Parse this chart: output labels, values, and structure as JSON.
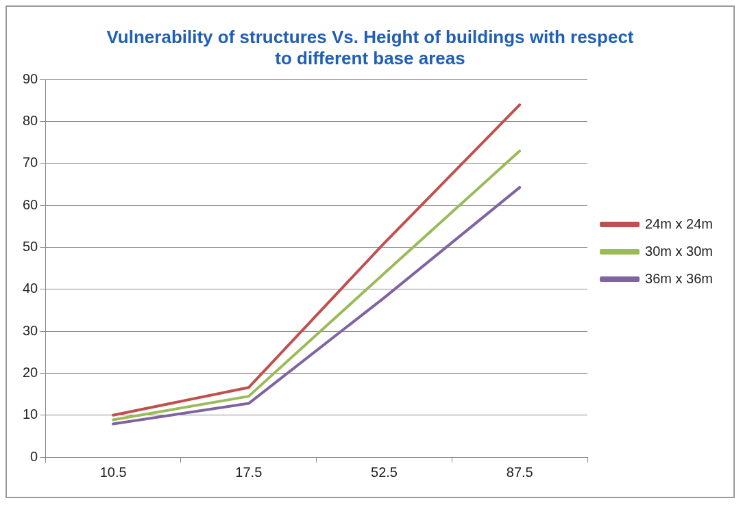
{
  "chart_data": {
    "type": "line",
    "title": "Vulnerability of structures Vs. Height of buildings with respect to different base areas",
    "categories": [
      "10.5",
      "17.5",
      "52.5",
      "87.5"
    ],
    "series": [
      {
        "name": "24m x 24m",
        "color": "#c0504d",
        "values": [
          10,
          16.6,
          51,
          84
        ]
      },
      {
        "name": "30m x 30m",
        "color": "#9bbb59",
        "values": [
          8.9,
          14.5,
          43.8,
          73
        ]
      },
      {
        "name": "36m x 36m",
        "color": "#8064a2",
        "values": [
          7.9,
          12.8,
          38,
          64.3
        ]
      }
    ],
    "ylim": [
      0,
      90
    ],
    "yticks": [
      0,
      10,
      20,
      30,
      40,
      50,
      60,
      70,
      80,
      90
    ],
    "grid": "y",
    "legend": "right",
    "marker": "none",
    "line_style": "solid"
  }
}
